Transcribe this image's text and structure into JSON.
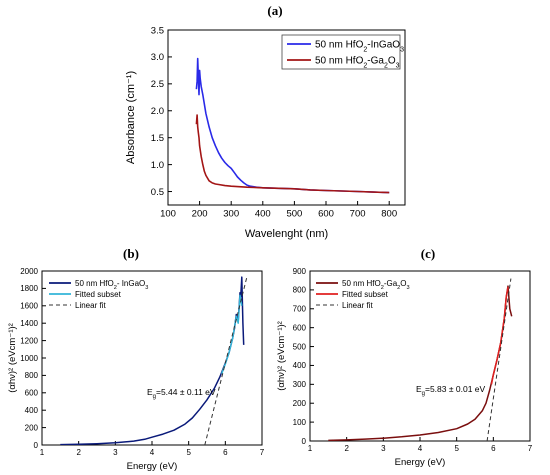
{
  "chart_data": [
    {
      "panel": "(a)",
      "type": "line",
      "xlabel": "Wavelenght (nm)",
      "ylabel": "Absorbance (cm⁻¹)",
      "xlim": [
        100,
        850
      ],
      "ylim": [
        0.25,
        3.5
      ],
      "xticks": [
        "100",
        "200",
        "300",
        "400",
        "500",
        "600",
        "700",
        "800"
      ],
      "yticks": [
        "0.5",
        "1.0",
        "1.5",
        "2.0",
        "2.5",
        "3.0",
        "3.5"
      ],
      "legend_position": "top-right",
      "series": [
        {
          "name_main": "50 nm HfO",
          "name_sub": "2",
          "name_rest": "-InGaO",
          "name_sub2": "3",
          "color": "#2a2ae8",
          "x": [
            190,
            192,
            194,
            196,
            198,
            200,
            202,
            205,
            210,
            220,
            230,
            240,
            250,
            260,
            270,
            280,
            290,
            300,
            310,
            320,
            330,
            340,
            350,
            360,
            380,
            400,
            450,
            500,
            550,
            600,
            650,
            700,
            750,
            800
          ],
          "y": [
            2.4,
            2.55,
            2.97,
            2.65,
            2.3,
            2.75,
            2.6,
            2.45,
            2.3,
            1.95,
            1.7,
            1.5,
            1.35,
            1.22,
            1.12,
            1.04,
            0.98,
            0.93,
            0.85,
            0.77,
            0.71,
            0.66,
            0.62,
            0.6,
            0.58,
            0.57,
            0.56,
            0.55,
            0.53,
            0.52,
            0.51,
            0.5,
            0.49,
            0.48
          ]
        },
        {
          "name_main": "50 nm HfO",
          "name_sub": "2",
          "name_rest": "-Ga",
          "name_sub2": "2",
          "name_rest2": "O",
          "name_sub3": "3",
          "color": "#a31515",
          "x": [
            190,
            192,
            194,
            196,
            198,
            200,
            205,
            210,
            215,
            220,
            230,
            240,
            250,
            260,
            280,
            300,
            350,
            400,
            450,
            500,
            550,
            600,
            650,
            700,
            750,
            800
          ],
          "y": [
            1.75,
            1.92,
            1.7,
            1.6,
            1.5,
            1.35,
            1.15,
            1.0,
            0.88,
            0.8,
            0.7,
            0.66,
            0.64,
            0.63,
            0.61,
            0.6,
            0.58,
            0.57,
            0.56,
            0.55,
            0.53,
            0.52,
            0.51,
            0.5,
            0.49,
            0.48
          ]
        }
      ]
    },
    {
      "panel": "(b)",
      "type": "line",
      "xlabel": "Energy (eV)",
      "ylabel": "(αhν)² (eVcm⁻¹)²",
      "xlim": [
        1,
        7
      ],
      "ylim": [
        0,
        2000
      ],
      "xticks": [
        "1",
        "2",
        "3",
        "4",
        "5",
        "6",
        "7"
      ],
      "yticks": [
        "0",
        "200",
        "400",
        "600",
        "800",
        "1000",
        "1200",
        "1400",
        "1600",
        "1800",
        "2000"
      ],
      "annotation": "5.44 ± 0.11 eV",
      "series": [
        {
          "name_main": "50 nm HfO",
          "name_sub": "2",
          "name_rest": "- InGaO",
          "name_sub2": "3",
          "color": "#0a1a7a",
          "style": "solid",
          "x": [
            1.5,
            2.0,
            2.5,
            3.0,
            3.5,
            3.8,
            4.0,
            4.3,
            4.6,
            4.9,
            5.1,
            5.3,
            5.5,
            5.7,
            5.85,
            6.0,
            6.1,
            6.2,
            6.25,
            6.3,
            6.35,
            6.4,
            6.42,
            6.45,
            6.48,
            6.5
          ],
          "y": [
            5,
            8,
            15,
            25,
            45,
            65,
            90,
            125,
            170,
            240,
            310,
            410,
            520,
            650,
            780,
            940,
            1060,
            1230,
            1340,
            1500,
            1420,
            1750,
            1700,
            1930,
            1400,
            1150
          ]
        },
        {
          "name_main": "Fitted subset",
          "color": "#33b5d8",
          "style": "solid",
          "x": [
            5.9,
            6.0,
            6.1,
            6.2,
            6.3,
            6.35,
            6.4,
            6.45
          ],
          "y": [
            820,
            930,
            1060,
            1230,
            1480,
            1400,
            1720,
            1600
          ]
        },
        {
          "name_main": "Linear fit",
          "color": "#333333",
          "style": "dashed",
          "x": [
            5.44,
            6.6
          ],
          "y": [
            0,
            1950
          ]
        }
      ]
    },
    {
      "panel": "(c)",
      "type": "line",
      "xlabel": "Energy (eV)",
      "ylabel": "(αhν)² (eVcm⁻¹)²",
      "xlim": [
        1,
        7
      ],
      "ylim": [
        0,
        900
      ],
      "xticks": [
        "1",
        "2",
        "3",
        "4",
        "5",
        "6",
        "7"
      ],
      "yticks": [
        "0",
        "100",
        "200",
        "300",
        "400",
        "500",
        "600",
        "700",
        "800",
        "900"
      ],
      "annotation": "5.83 ± 0.01 eV",
      "series": [
        {
          "name_main": "50 nm HfO",
          "name_sub": "2",
          "name_rest": "-Ga",
          "name_sub2": "2",
          "name_rest2": "O",
          "name_sub3": "3",
          "color": "#7a0e0e",
          "style": "solid",
          "x": [
            1.5,
            2.0,
            2.5,
            3.0,
            3.5,
            4.0,
            4.5,
            5.0,
            5.3,
            5.5,
            5.7,
            5.8,
            5.9,
            6.0,
            6.1,
            6.2,
            6.3,
            6.35,
            6.4,
            6.45,
            6.5
          ],
          "y": [
            3,
            6,
            10,
            15,
            22,
            32,
            45,
            65,
            90,
            115,
            160,
            200,
            270,
            350,
            430,
            520,
            650,
            760,
            820,
            700,
            660
          ]
        },
        {
          "name_main": "Fitted subset",
          "color": "#e02020",
          "style": "solid",
          "x": [
            5.95,
            6.0,
            6.1,
            6.2,
            6.3,
            6.35,
            6.4
          ],
          "y": [
            300,
            350,
            430,
            520,
            650,
            760,
            815
          ]
        },
        {
          "name_main": "Linear fit",
          "color": "#333333",
          "style": "dashed",
          "x": [
            5.83,
            6.48
          ],
          "y": [
            0,
            860
          ]
        }
      ]
    }
  ]
}
